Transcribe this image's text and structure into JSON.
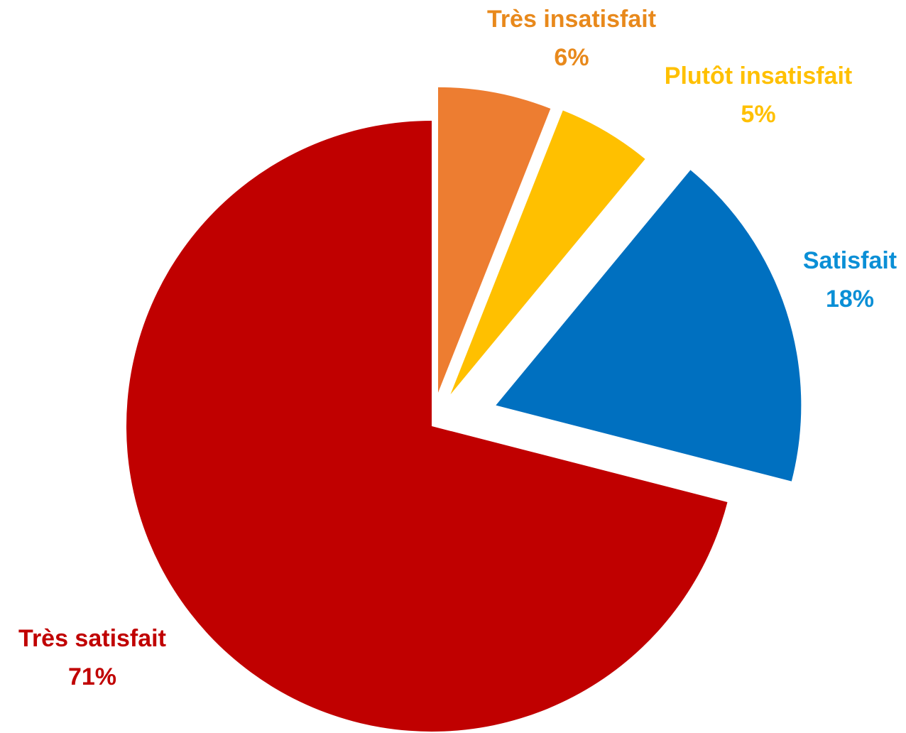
{
  "chart_data": {
    "type": "pie",
    "title": "",
    "exploded": true,
    "slices": [
      {
        "label": "Très insatisfait",
        "value": 6,
        "value_label": "6%",
        "color": "#ED7D31",
        "label_color": "#E8891C"
      },
      {
        "label": "Plutôt insatisfait",
        "value": 5,
        "value_label": "5%",
        "color": "#FFC000",
        "label_color": "#FFC000"
      },
      {
        "label": "Satisfait",
        "value": 18,
        "value_label": "18%",
        "color": "#0070C0",
        "label_color": "#0A8FD6"
      },
      {
        "label": "Très satisfait",
        "value": 71,
        "value_label": "71%",
        "color": "#C00000",
        "label_color": "#C00000"
      }
    ]
  }
}
